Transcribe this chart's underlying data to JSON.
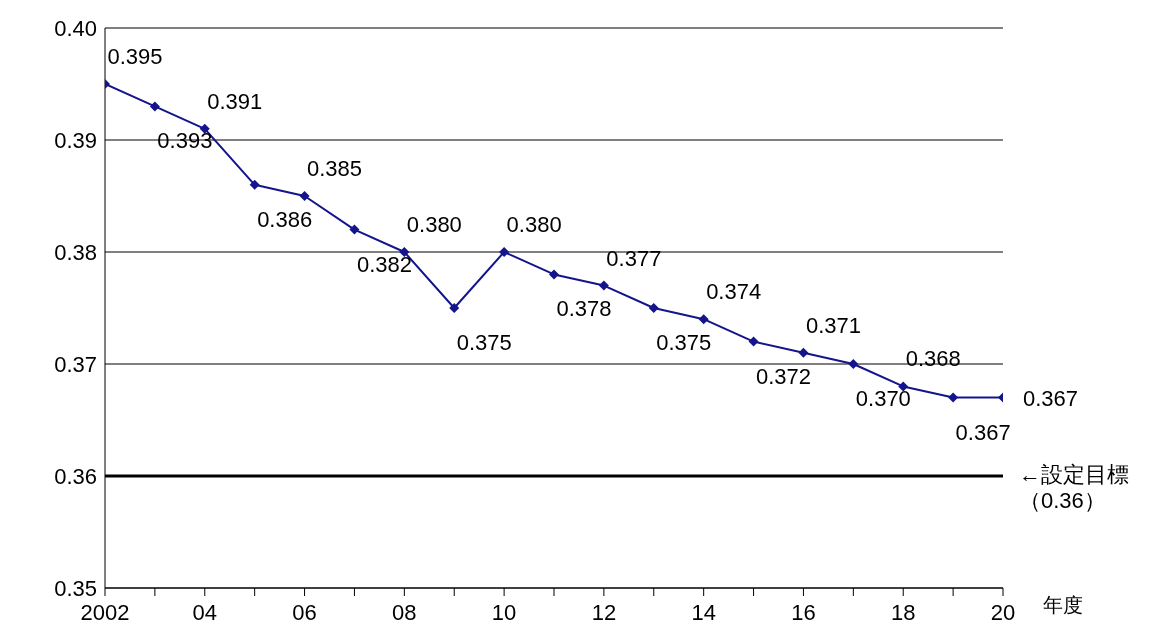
{
  "chart_data": {
    "type": "line",
    "xlabel": "年度",
    "categories": [
      "2002",
      null,
      "04",
      null,
      "06",
      null,
      "08",
      null,
      "10",
      null,
      "12",
      null,
      "14",
      null,
      "16",
      null,
      "18",
      null,
      "20"
    ],
    "series": [
      {
        "color": "#14148c",
        "values": [
          0.395,
          0.393,
          0.391,
          0.386,
          0.385,
          0.382,
          0.38,
          0.375,
          0.38,
          0.378,
          0.377,
          0.375,
          0.374,
          0.372,
          0.371,
          0.37,
          0.368,
          0.367,
          0.367
        ],
        "value_labels": [
          "0.395",
          "0.393",
          "0.391",
          "0.386",
          "0.385",
          "0.382",
          "0.380",
          "0.375",
          "0.380",
          "0.378",
          "0.377",
          "0.375",
          "0.374",
          "0.372",
          "0.371",
          "0.370",
          "0.368",
          "0.367",
          "0.367"
        ]
      }
    ],
    "ylim": [
      0.35,
      0.4
    ],
    "yticks": [
      0.35,
      0.36,
      0.37,
      0.38,
      0.39,
      {
        "value": 0.4,
        "label": "0.40"
      }
    ],
    "grid": "y",
    "marker": "diamond",
    "line_style": "solid",
    "ref_lines": [
      {
        "axis": "y",
        "value": 0.36,
        "label": "←設定目標（0.36）",
        "color": "#000000"
      }
    ]
  }
}
